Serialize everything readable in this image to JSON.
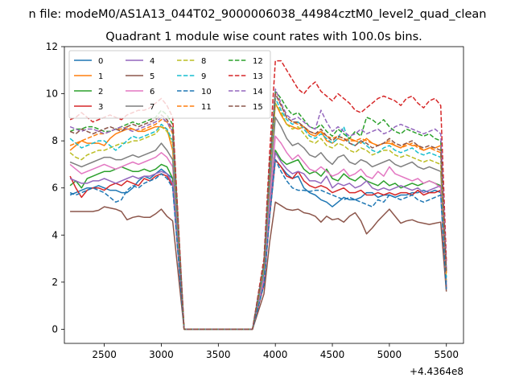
{
  "figure_title": "n file: modeM0/AS1A13_044T02_9000006038_44984cztM0_level2_quad_clean",
  "chart_data": {
    "type": "line",
    "title": "Quadrant 1 module wise count rates with 100.0s bins.",
    "xlabel": "",
    "ylabel": "",
    "x_offset_label": "+4.4364e8",
    "xlim": [
      2150,
      5650
    ],
    "ylim": [
      -0.6,
      12
    ],
    "xticks": [
      2500,
      3000,
      3500,
      4000,
      4500,
      5000,
      5500
    ],
    "yticks": [
      0,
      2,
      4,
      6,
      8,
      10,
      12
    ],
    "grid": false,
    "legend_position": "upper-left",
    "legend_columns": 4,
    "x": [
      2200,
      2250,
      2300,
      2350,
      2400,
      2450,
      2500,
      2550,
      2600,
      2650,
      2700,
      2750,
      2800,
      2850,
      2900,
      2950,
      3000,
      3050,
      3100,
      3200,
      3300,
      3400,
      3500,
      3600,
      3700,
      3800,
      3900,
      3950,
      4000,
      4050,
      4100,
      4150,
      4200,
      4250,
      4300,
      4350,
      4400,
      4450,
      4500,
      4550,
      4600,
      4650,
      4700,
      4750,
      4800,
      4850,
      4900,
      4950,
      5000,
      5050,
      5100,
      5150,
      5200,
      5250,
      5300,
      5350,
      5400,
      5450,
      5500
    ],
    "series": [
      {
        "name": "0",
        "color": "#1f77b4",
        "dash": "solid",
        "values": [
          5.7,
          5.8,
          5.9,
          6.0,
          6.0,
          6.1,
          6.0,
          5.9,
          5.9,
          5.8,
          5.8,
          6.0,
          6.3,
          6.5,
          6.4,
          6.6,
          6.8,
          6.6,
          6.4,
          0,
          0,
          0,
          0,
          0,
          0,
          0,
          1.9,
          4.8,
          7.2,
          6.9,
          6.6,
          6.4,
          6.5,
          6.0,
          5.8,
          5.7,
          5.5,
          5.4,
          5.2,
          5.4,
          5.6,
          5.5,
          5.5,
          5.6,
          5.8,
          5.8,
          5.6,
          5.7,
          5.7,
          5.6,
          5.7,
          5.7,
          5.8,
          5.8,
          5.9,
          5.8,
          5.9,
          5.8,
          1.7
        ]
      },
      {
        "name": "1",
        "color": "#ff7f0e",
        "dash": "solid",
        "values": [
          7.6,
          7.8,
          8.0,
          7.9,
          7.9,
          7.9,
          7.8,
          8.1,
          8.3,
          8.4,
          8.5,
          8.5,
          8.4,
          8.4,
          8.5,
          8.6,
          8.6,
          8.5,
          7.6,
          0,
          0,
          0,
          0,
          0,
          0,
          0,
          2.5,
          6.2,
          9.6,
          9.1,
          8.7,
          8.6,
          8.5,
          8.6,
          8.3,
          8.2,
          8.4,
          8.0,
          7.9,
          8.1,
          8.0,
          8.1,
          8.0,
          7.9,
          8.1,
          7.9,
          7.8,
          7.9,
          7.9,
          7.8,
          7.7,
          7.9,
          7.8,
          7.8,
          7.6,
          7.7,
          7.7,
          7.8,
          2.4
        ]
      },
      {
        "name": "2",
        "color": "#2ca02c",
        "dash": "solid",
        "values": [
          6.1,
          6.3,
          6.0,
          6.4,
          6.5,
          6.6,
          6.7,
          6.7,
          6.8,
          6.9,
          6.8,
          6.7,
          6.7,
          6.8,
          6.7,
          6.8,
          7.0,
          6.9,
          6.4,
          0,
          0,
          0,
          0,
          0,
          0,
          0,
          2.0,
          5.0,
          7.6,
          7.2,
          7.0,
          7.1,
          7.2,
          6.8,
          6.6,
          6.7,
          6.5,
          6.8,
          6.4,
          6.3,
          6.6,
          6.4,
          6.3,
          6.5,
          6.3,
          6.2,
          6.1,
          6.3,
          6.1,
          6.2,
          6.0,
          6.1,
          6.2,
          6.1,
          6.2,
          6.3,
          6.2,
          6.1,
          1.8
        ]
      },
      {
        "name": "3",
        "color": "#d62728",
        "dash": "solid",
        "values": [
          6.5,
          6.0,
          5.6,
          5.9,
          6.0,
          6.0,
          5.9,
          6.1,
          6.2,
          6.1,
          6.3,
          6.2,
          6.1,
          6.4,
          6.3,
          6.5,
          6.6,
          6.5,
          6.1,
          0,
          0,
          0,
          0,
          0,
          0,
          0,
          1.9,
          4.8,
          7.2,
          6.9,
          6.5,
          6.4,
          6.7,
          6.3,
          6.1,
          6.0,
          6.1,
          6.0,
          5.8,
          5.9,
          6.0,
          5.8,
          5.8,
          5.9,
          5.7,
          5.7,
          5.8,
          5.7,
          5.8,
          5.7,
          5.8,
          5.8,
          5.7,
          5.9,
          5.7,
          5.8,
          5.8,
          5.9,
          1.7
        ]
      },
      {
        "name": "4",
        "color": "#9467bd",
        "dash": "solid",
        "values": [
          6.4,
          6.3,
          6.2,
          6.2,
          6.3,
          6.3,
          6.4,
          6.3,
          6.2,
          6.3,
          6.4,
          6.5,
          6.4,
          6.5,
          6.5,
          6.6,
          6.7,
          6.6,
          6.2,
          0,
          0,
          0,
          0,
          0,
          0,
          0,
          2.0,
          4.9,
          7.5,
          7.1,
          6.8,
          6.6,
          6.7,
          6.6,
          6.3,
          6.3,
          6.2,
          6.5,
          6.0,
          6.2,
          6.1,
          6.2,
          6.0,
          6.1,
          6.3,
          6.0,
          5.9,
          6.0,
          5.9,
          6.0,
          6.1,
          6.0,
          5.9,
          6.0,
          5.8,
          5.9,
          6.0,
          6.1,
          1.8
        ]
      },
      {
        "name": "5",
        "color": "#8c564b",
        "dash": "solid",
        "values": [
          5.0,
          5.0,
          5.0,
          5.0,
          5.0,
          5.05,
          5.2,
          5.15,
          5.1,
          5.0,
          4.65,
          4.75,
          4.8,
          4.75,
          4.75,
          4.9,
          5.1,
          4.8,
          4.6,
          0,
          0,
          0,
          0,
          0,
          0,
          0,
          1.5,
          3.7,
          5.4,
          5.25,
          5.1,
          5.05,
          5.1,
          4.95,
          4.9,
          4.8,
          4.55,
          4.8,
          4.65,
          4.7,
          4.55,
          4.8,
          4.95,
          4.6,
          4.05,
          4.3,
          4.6,
          4.85,
          5.1,
          4.8,
          4.5,
          4.6,
          4.65,
          4.55,
          4.5,
          4.45,
          4.5,
          4.55,
          1.6
        ]
      },
      {
        "name": "6",
        "color": "#e377c2",
        "dash": "solid",
        "values": [
          7.0,
          6.8,
          6.6,
          6.7,
          6.8,
          6.9,
          7.0,
          6.9,
          6.8,
          6.9,
          7.0,
          7.1,
          7.0,
          7.1,
          7.2,
          7.3,
          7.5,
          7.3,
          6.9,
          0,
          0,
          0,
          0,
          0,
          0,
          0,
          2.2,
          5.5,
          8.2,
          7.9,
          7.5,
          7.2,
          7.4,
          7.1,
          6.8,
          6.7,
          6.9,
          6.7,
          6.5,
          6.6,
          6.8,
          6.5,
          6.6,
          6.8,
          6.5,
          6.4,
          6.7,
          6.5,
          6.9,
          6.6,
          6.5,
          6.4,
          6.3,
          6.4,
          6.2,
          6.3,
          6.2,
          6.0,
          1.9
        ]
      },
      {
        "name": "7",
        "color": "#7f7f7f",
        "dash": "solid",
        "values": [
          7.1,
          7.0,
          6.9,
          7.0,
          7.1,
          7.2,
          7.3,
          7.3,
          7.2,
          7.2,
          7.3,
          7.4,
          7.3,
          7.4,
          7.5,
          7.6,
          7.9,
          7.6,
          7.2,
          0,
          0,
          0,
          0,
          0,
          0,
          0,
          2.4,
          6.0,
          9.0,
          8.6,
          8.1,
          7.8,
          7.9,
          7.7,
          7.4,
          7.3,
          7.5,
          7.2,
          7.0,
          7.3,
          7.4,
          7.1,
          7.0,
          7.2,
          7.1,
          6.9,
          7.0,
          7.1,
          7.2,
          7.0,
          6.9,
          7.0,
          7.1,
          6.9,
          6.8,
          6.9,
          6.8,
          6.7,
          2.0
        ]
      },
      {
        "name": "8",
        "color": "#bcbd22",
        "dash": "dashed",
        "values": [
          7.5,
          7.3,
          7.2,
          7.4,
          7.5,
          7.6,
          7.6,
          7.7,
          7.8,
          7.9,
          7.9,
          8.0,
          8.0,
          8.1,
          8.2,
          8.3,
          8.6,
          8.4,
          7.9,
          0,
          0,
          0,
          0,
          0,
          0,
          0,
          2.6,
          6.5,
          9.6,
          9.2,
          8.7,
          8.5,
          8.6,
          8.3,
          8.0,
          7.9,
          8.1,
          7.8,
          7.7,
          7.9,
          7.8,
          7.6,
          7.5,
          7.7,
          7.6,
          7.4,
          7.5,
          7.6,
          7.6,
          7.4,
          7.3,
          7.4,
          7.3,
          7.2,
          7.1,
          7.2,
          7.1,
          7.0,
          2.1
        ]
      },
      {
        "name": "9",
        "color": "#17becf",
        "dash": "dashed",
        "values": [
          8.1,
          7.9,
          7.7,
          7.8,
          7.9,
          8.0,
          8.0,
          7.8,
          7.6,
          7.8,
          8.0,
          8.2,
          8.1,
          8.2,
          8.3,
          8.4,
          8.7,
          8.5,
          8.0,
          0,
          0,
          0,
          0,
          0,
          0,
          0,
          2.6,
          6.6,
          9.8,
          9.3,
          8.9,
          8.7,
          8.8,
          8.5,
          8.2,
          8.1,
          8.3,
          8.1,
          7.9,
          8.1,
          8.6,
          7.9,
          7.8,
          8.0,
          7.8,
          7.6,
          7.5,
          7.7,
          7.8,
          7.6,
          7.5,
          7.6,
          7.7,
          7.5,
          7.4,
          7.5,
          7.4,
          7.3,
          2.2
        ]
      },
      {
        "name": "10",
        "color": "#1f77b4",
        "dash": "dashed",
        "values": [
          5.8,
          5.7,
          5.8,
          5.9,
          6.0,
          5.9,
          5.8,
          5.6,
          5.4,
          5.5,
          5.9,
          6.1,
          6.0,
          6.2,
          6.3,
          6.4,
          6.6,
          6.4,
          6.0,
          0,
          0,
          0,
          0,
          0,
          0,
          0,
          1.9,
          4.8,
          7.2,
          6.7,
          6.3,
          6.0,
          5.9,
          5.9,
          5.85,
          5.9,
          5.9,
          5.8,
          5.7,
          5.6,
          5.5,
          5.6,
          5.5,
          5.4,
          5.3,
          5.2,
          5.5,
          5.4,
          5.7,
          5.6,
          5.5,
          5.6,
          5.7,
          5.5,
          5.4,
          5.5,
          5.6,
          5.7,
          1.7
        ]
      },
      {
        "name": "11",
        "color": "#ff7f0e",
        "dash": "dashed",
        "values": [
          7.8,
          7.9,
          8.0,
          8.1,
          8.2,
          8.3,
          8.3,
          8.4,
          8.5,
          8.5,
          8.6,
          8.5,
          8.4,
          8.5,
          8.6,
          8.7,
          8.9,
          8.8,
          8.3,
          0,
          0,
          0,
          0,
          0,
          0,
          0,
          2.7,
          6.8,
          10.0,
          9.5,
          9.0,
          8.8,
          8.7,
          8.6,
          8.4,
          8.3,
          8.4,
          8.2,
          8.1,
          8.2,
          8.1,
          8.0,
          8.0,
          8.1,
          8.0,
          7.9,
          7.8,
          7.9,
          8.0,
          7.8,
          7.7,
          7.8,
          7.9,
          7.7,
          7.6,
          7.7,
          7.6,
          7.5,
          2.3
        ]
      },
      {
        "name": "12",
        "color": "#2ca02c",
        "dash": "dashed",
        "values": [
          8.4,
          8.5,
          8.5,
          8.6,
          8.6,
          8.5,
          8.4,
          8.4,
          8.5,
          8.6,
          8.7,
          8.8,
          8.7,
          8.8,
          8.9,
          9.0,
          9.3,
          9.1,
          8.7,
          0,
          0,
          0,
          0,
          0,
          0,
          0,
          2.8,
          7.0,
          10.1,
          9.8,
          9.4,
          9.1,
          9.2,
          8.9,
          8.6,
          8.5,
          8.7,
          8.4,
          8.2,
          8.5,
          8.3,
          8.1,
          8.4,
          8.2,
          9.0,
          8.9,
          8.7,
          8.9,
          8.6,
          8.4,
          8.3,
          8.5,
          8.4,
          8.3,
          8.2,
          8.3,
          8.1,
          8.0,
          2.5
        ]
      },
      {
        "name": "13",
        "color": "#d62728",
        "dash": "dashed",
        "values": [
          8.9,
          9.0,
          9.2,
          9.0,
          8.8,
          8.9,
          9.0,
          9.1,
          9.0,
          8.9,
          9.1,
          9.2,
          9.3,
          9.3,
          9.4,
          9.6,
          9.8,
          9.5,
          9.0,
          0,
          0,
          0,
          0,
          0,
          0,
          0,
          3.0,
          7.5,
          11.4,
          11.4,
          11.0,
          10.6,
          10.2,
          10.0,
          10.3,
          10.5,
          10.1,
          9.9,
          9.7,
          10.0,
          9.8,
          9.6,
          9.3,
          9.2,
          9.4,
          9.6,
          9.8,
          9.9,
          9.8,
          9.7,
          9.5,
          9.8,
          9.9,
          9.6,
          9.4,
          9.7,
          9.8,
          9.5,
          2.9
        ]
      },
      {
        "name": "14",
        "color": "#9467bd",
        "dash": "dashed",
        "values": [
          8.6,
          8.5,
          8.4,
          8.5,
          8.5,
          8.4,
          8.3,
          8.4,
          8.5,
          8.6,
          8.5,
          8.4,
          8.5,
          8.6,
          8.7,
          8.8,
          9.0,
          8.8,
          8.4,
          0,
          0,
          0,
          0,
          0,
          0,
          0,
          2.8,
          6.9,
          10.2,
          9.6,
          9.1,
          8.9,
          9.0,
          8.8,
          8.6,
          8.5,
          9.3,
          8.8,
          8.4,
          8.6,
          8.4,
          8.2,
          8.3,
          8.5,
          8.3,
          8.4,
          8.5,
          8.3,
          8.4,
          8.6,
          8.7,
          8.6,
          8.5,
          8.4,
          8.3,
          8.4,
          8.5,
          8.3,
          2.6
        ]
      },
      {
        "name": "15",
        "color": "#8c564b",
        "dash": "dashed",
        "values": [
          8.4,
          8.3,
          8.5,
          8.4,
          8.3,
          8.4,
          8.5,
          8.6,
          8.5,
          8.4,
          8.6,
          8.7,
          8.6,
          8.7,
          8.8,
          8.9,
          9.1,
          8.9,
          8.5,
          0,
          0,
          0,
          0,
          0,
          0,
          0,
          2.8,
          6.9,
          10.0,
          9.5,
          9.0,
          8.8,
          8.8,
          8.6,
          8.4,
          8.3,
          8.5,
          8.2,
          8.0,
          8.2,
          8.1,
          7.9,
          7.8,
          8.0,
          7.9,
          7.7,
          7.8,
          7.9,
          8.1,
          7.9,
          7.8,
          7.9,
          8.0,
          7.8,
          7.7,
          7.8,
          7.7,
          7.6,
          2.4
        ]
      }
    ]
  }
}
